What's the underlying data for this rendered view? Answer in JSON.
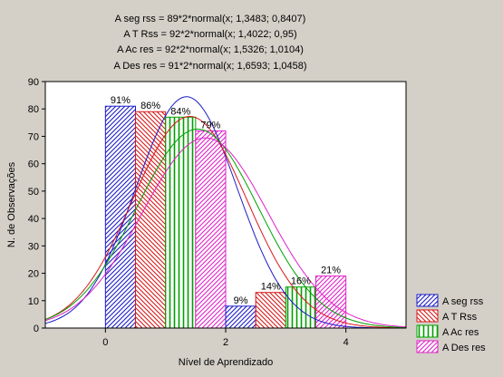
{
  "chart_data": {
    "type": "bar",
    "title_lines": [
      "A seg rss = 89*2*normal(x; 1,3483; 0,8407)",
      "A T Rss = 92*2*normal(x; 1,4022; 0,95)",
      "A Ac res = 92*2*normal(x; 1,5326; 1,0104)",
      "A Des res = 91*2*normal(x; 1,6593; 1,0458)"
    ],
    "xlabel": "Nível de Aprendizado",
    "ylabel": "N. de Observações",
    "xlim": [
      -1,
      5
    ],
    "ylim": [
      0,
      90
    ],
    "xticks": [
      0,
      2,
      4
    ],
    "yticks": [
      0,
      10,
      20,
      30,
      40,
      50,
      60,
      70,
      80,
      90
    ],
    "grid": false,
    "legend_position": "bottom-right",
    "bin_width": 2,
    "bin_centers": [
      1,
      3
    ],
    "series": [
      {
        "name": "A seg rss",
        "color": "#1c1cc8",
        "pattern": "diag-right",
        "values": [
          81,
          8
        ],
        "labels": [
          "91%",
          "9%"
        ],
        "norm_n": 89,
        "norm_mean": 1.3483,
        "norm_sd": 0.8407
      },
      {
        "name": "A T Rss",
        "color": "#d81818",
        "pattern": "diag-left",
        "values": [
          79,
          13
        ],
        "labels": [
          "86%",
          "14%"
        ],
        "norm_n": 92,
        "norm_mean": 1.4022,
        "norm_sd": 0.95
      },
      {
        "name": "A Ac res",
        "color": "#00a000",
        "pattern": "vertical",
        "values": [
          77,
          15
        ],
        "labels": [
          "84%",
          "16%"
        ],
        "norm_n": 92,
        "norm_mean": 1.5326,
        "norm_sd": 1.0104
      },
      {
        "name": "A Des res",
        "color": "#e020c8",
        "pattern": "diag-right",
        "values": [
          72,
          19
        ],
        "labels": [
          "79%",
          "21%"
        ],
        "norm_n": 91,
        "norm_mean": 1.6593,
        "norm_sd": 1.0458
      }
    ]
  }
}
